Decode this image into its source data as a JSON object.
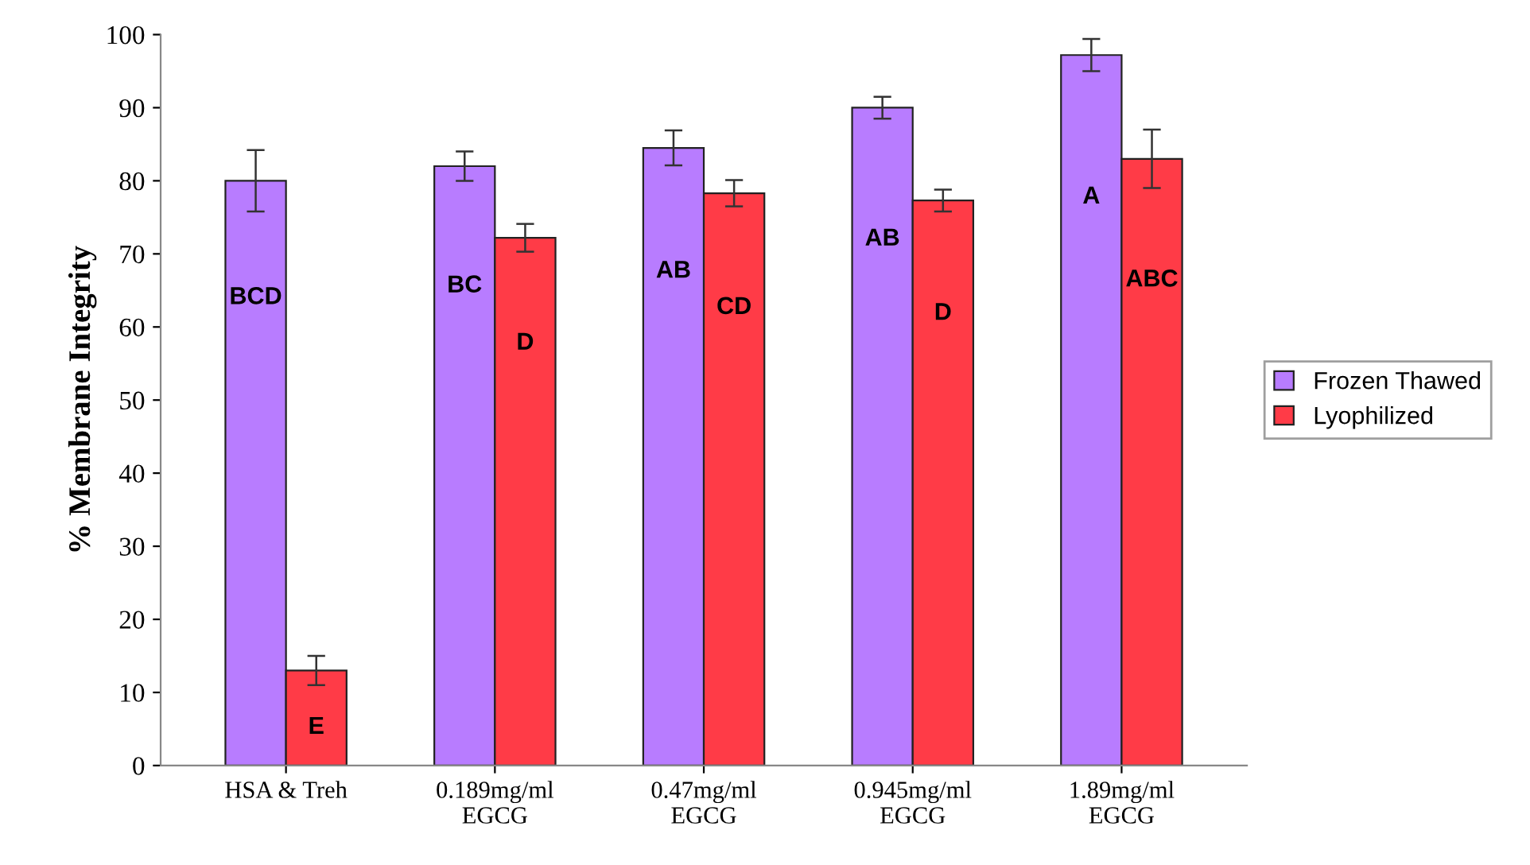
{
  "chart_data": {
    "type": "bar",
    "ylabel": "% Membrane Integrity",
    "categories": [
      "HSA & Treh",
      "0.189mg/ml\nEGCG",
      "0.47mg/ml\nEGCG",
      "0.945mg/ml\nEGCG",
      "1.89mg/ml\nEGCG"
    ],
    "series": [
      {
        "name": "Frozen Thawed",
        "color": "#b87cff",
        "values": [
          80,
          82,
          84.5,
          90,
          97.2
        ],
        "errors": [
          4.2,
          2,
          2.4,
          1.5,
          2.2
        ],
        "value_labels": [
          "BCD",
          "BC",
          "AB",
          "AB",
          "A"
        ]
      },
      {
        "name": "Lyophilized",
        "color": "#ff3b47",
        "values": [
          13,
          72.2,
          78.3,
          77.3,
          83
        ],
        "errors": [
          2,
          1.9,
          1.8,
          1.5,
          4
        ],
        "value_labels": [
          "E",
          "D",
          "CD",
          "D",
          "ABC"
        ]
      }
    ],
    "ylim": [
      0,
      100
    ],
    "yticks": [
      0,
      10,
      20,
      30,
      40,
      50,
      60,
      70,
      80,
      90,
      100
    ],
    "grid": false,
    "legend": "right"
  }
}
